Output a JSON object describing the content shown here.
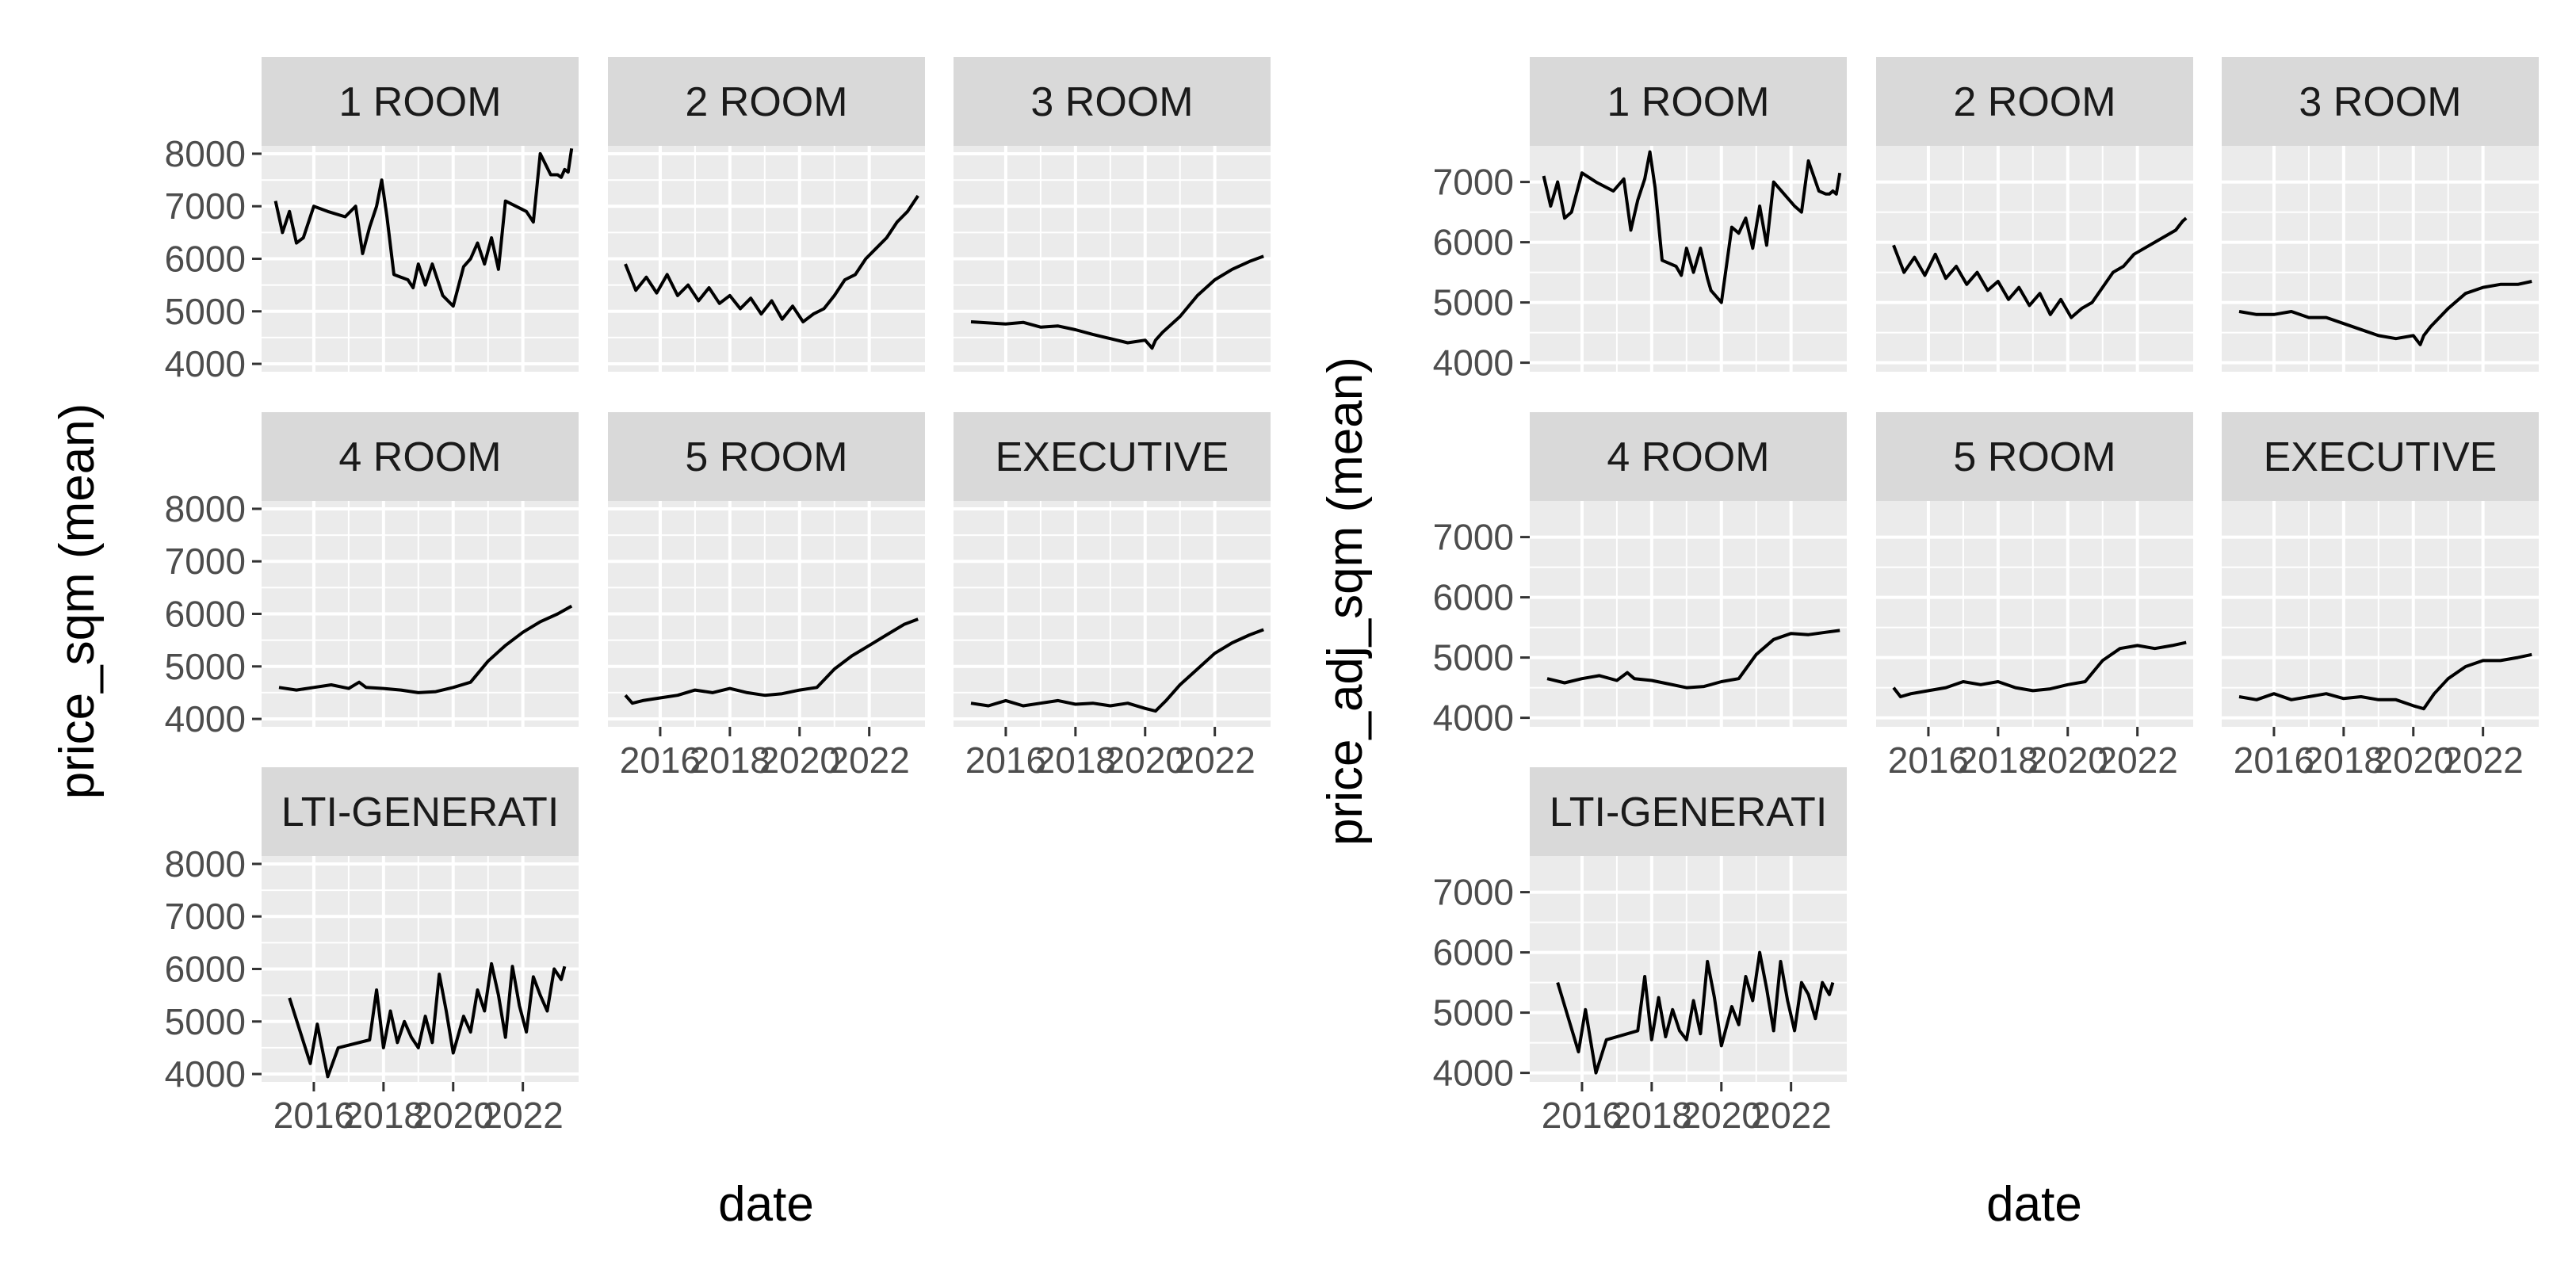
{
  "chart_data": [
    {
      "type": "line",
      "ylabel": "price_sqm (mean)",
      "xlabel": "date",
      "xlim": [
        2014.5,
        2023.6
      ],
      "ylim": [
        3850,
        8150
      ],
      "x_ticks": [
        2016,
        2018,
        2020,
        2022
      ],
      "x_tick_labels": [
        "2016",
        "2018",
        "2020",
        "2022"
      ],
      "y_ticks": [
        4000,
        5000,
        6000,
        7000,
        8000
      ],
      "y_tick_labels": [
        "4000",
        "5000",
        "6000",
        "7000",
        "8000"
      ],
      "strip_labels": [
        "1 ROOM",
        "2 ROOM",
        "3 ROOM",
        "4 ROOM",
        "5 ROOM",
        "EXECUTIVE",
        "LTI-GENERATI"
      ],
      "series": [
        {
          "panel": "1 ROOM",
          "x": [
            2014.9,
            2015.1,
            2015.3,
            2015.5,
            2015.7,
            2016.0,
            2016.4,
            2016.9,
            2017.2,
            2017.4,
            2017.6,
            2017.8,
            2017.95,
            2018.1,
            2018.3,
            2018.5,
            2018.7,
            2018.85,
            2019.0,
            2019.2,
            2019.4,
            2019.6,
            2019.7,
            2020.0,
            2020.3,
            2020.5,
            2020.7,
            2020.9,
            2021.1,
            2021.3,
            2021.5,
            2021.8,
            2022.1,
            2022.3,
            2022.5,
            2022.8,
            2023.0,
            2023.1,
            2023.2,
            2023.3,
            2023.4
          ],
          "values": [
            7100,
            6500,
            6900,
            6300,
            6400,
            7000,
            6900,
            6800,
            7000,
            6100,
            6600,
            7000,
            7500,
            6800,
            5700,
            5650,
            5600,
            5450,
            5900,
            5500,
            5900,
            5500,
            5300,
            5100,
            5850,
            6000,
            6300,
            5900,
            6400,
            5800,
            7100,
            7000,
            6900,
            6700,
            8000,
            7600,
            7600,
            7550,
            7700,
            7650,
            8100
          ]
        },
        {
          "panel": "2 ROOM",
          "x": [
            2015.0,
            2015.3,
            2015.6,
            2015.9,
            2016.2,
            2016.5,
            2016.8,
            2017.1,
            2017.4,
            2017.7,
            2018.0,
            2018.3,
            2018.6,
            2018.9,
            2019.2,
            2019.5,
            2019.8,
            2020.1,
            2020.4,
            2020.7,
            2021.0,
            2021.3,
            2021.6,
            2021.9,
            2022.2,
            2022.5,
            2022.8,
            2023.1,
            2023.3,
            2023.4
          ],
          "values": [
            5900,
            5400,
            5650,
            5350,
            5700,
            5300,
            5500,
            5200,
            5450,
            5150,
            5300,
            5050,
            5250,
            4950,
            5200,
            4850,
            5100,
            4800,
            4950,
            5050,
            5300,
            5600,
            5700,
            6000,
            6200,
            6400,
            6700,
            6900,
            7100,
            7200
          ]
        },
        {
          "panel": "3 ROOM",
          "x": [
            2015.0,
            2015.5,
            2016.0,
            2016.5,
            2017.0,
            2017.5,
            2018.0,
            2018.5,
            2019.0,
            2019.5,
            2020.0,
            2020.2,
            2020.3,
            2020.5,
            2021.0,
            2021.5,
            2022.0,
            2022.5,
            2023.0,
            2023.4
          ],
          "values": [
            4800,
            4780,
            4760,
            4790,
            4700,
            4720,
            4650,
            4560,
            4480,
            4400,
            4450,
            4300,
            4450,
            4600,
            4900,
            5300,
            5600,
            5800,
            5950,
            6050
          ]
        },
        {
          "panel": "4 ROOM",
          "x": [
            2015.0,
            2015.5,
            2016.0,
            2016.5,
            2017.0,
            2017.3,
            2017.5,
            2018.0,
            2018.5,
            2019.0,
            2019.5,
            2020.0,
            2020.5,
            2021.0,
            2021.5,
            2022.0,
            2022.5,
            2023.0,
            2023.4
          ],
          "values": [
            4600,
            4550,
            4600,
            4650,
            4580,
            4700,
            4600,
            4580,
            4550,
            4500,
            4520,
            4600,
            4700,
            5100,
            5400,
            5650,
            5850,
            6000,
            6150
          ]
        },
        {
          "panel": "5 ROOM",
          "x": [
            2015.0,
            2015.2,
            2015.5,
            2016.0,
            2016.5,
            2017.0,
            2017.5,
            2018.0,
            2018.5,
            2019.0,
            2019.5,
            2020.0,
            2020.5,
            2021.0,
            2021.5,
            2022.0,
            2022.5,
            2023.0,
            2023.4
          ],
          "values": [
            4450,
            4300,
            4350,
            4400,
            4450,
            4550,
            4500,
            4580,
            4500,
            4450,
            4480,
            4550,
            4600,
            4950,
            5200,
            5400,
            5600,
            5800,
            5900
          ]
        },
        {
          "panel": "EXECUTIVE",
          "x": [
            2015.0,
            2015.5,
            2016.0,
            2016.5,
            2017.0,
            2017.5,
            2018.0,
            2018.5,
            2019.0,
            2019.5,
            2020.0,
            2020.3,
            2020.6,
            2021.0,
            2021.5,
            2022.0,
            2022.5,
            2023.0,
            2023.4
          ],
          "values": [
            4300,
            4250,
            4350,
            4250,
            4300,
            4350,
            4280,
            4300,
            4250,
            4300,
            4200,
            4150,
            4350,
            4650,
            4950,
            5250,
            5450,
            5600,
            5700
          ]
        },
        {
          "panel": "LTI-GENERATI",
          "x": [
            2015.3,
            2015.9,
            2016.1,
            2016.4,
            2016.7,
            2017.6,
            2017.8,
            2018.0,
            2018.2,
            2018.4,
            2018.6,
            2018.8,
            2019.0,
            2019.2,
            2019.4,
            2019.6,
            2019.8,
            2020.0,
            2020.3,
            2020.5,
            2020.7,
            2020.9,
            2021.1,
            2021.3,
            2021.5,
            2021.7,
            2021.9,
            2022.1,
            2022.3,
            2022.5,
            2022.7,
            2022.9,
            2023.1,
            2023.2
          ],
          "values": [
            5450,
            4200,
            4950,
            3950,
            4500,
            4650,
            5600,
            4500,
            5200,
            4600,
            5000,
            4700,
            4500,
            5100,
            4600,
            5900,
            5200,
            4400,
            5100,
            4800,
            5600,
            5200,
            6100,
            5500,
            4700,
            6050,
            5300,
            4800,
            5850,
            5500,
            5200,
            6000,
            5800,
            6050
          ]
        }
      ]
    },
    {
      "type": "line",
      "ylabel": "price_adj_sqm (mean)",
      "xlabel": "date",
      "xlim": [
        2014.5,
        2023.6
      ],
      "ylim": [
        3850,
        7600
      ],
      "x_ticks": [
        2016,
        2018,
        2020,
        2022
      ],
      "x_tick_labels": [
        "2016",
        "2018",
        "2020",
        "2022"
      ],
      "y_ticks": [
        4000,
        5000,
        6000,
        7000
      ],
      "y_tick_labels": [
        "4000",
        "5000",
        "6000",
        "7000"
      ],
      "strip_labels": [
        "1 ROOM",
        "2 ROOM",
        "3 ROOM",
        "4 ROOM",
        "5 ROOM",
        "EXECUTIVE",
        "LTI-GENERATI"
      ],
      "series": [
        {
          "panel": "1 ROOM",
          "x": [
            2014.9,
            2015.1,
            2015.3,
            2015.5,
            2015.7,
            2016.0,
            2016.4,
            2016.9,
            2017.2,
            2017.4,
            2017.6,
            2017.8,
            2017.95,
            2018.1,
            2018.3,
            2018.5,
            2018.7,
            2018.85,
            2019.0,
            2019.2,
            2019.4,
            2019.6,
            2019.7,
            2020.0,
            2020.3,
            2020.5,
            2020.7,
            2020.9,
            2021.1,
            2021.3,
            2021.5,
            2021.8,
            2022.1,
            2022.3,
            2022.5,
            2022.8,
            2023.0,
            2023.1,
            2023.2,
            2023.3,
            2023.4
          ],
          "values": [
            7100,
            6600,
            7000,
            6400,
            6500,
            7150,
            7000,
            6850,
            7050,
            6200,
            6700,
            7050,
            7500,
            6900,
            5700,
            5650,
            5600,
            5450,
            5900,
            5500,
            5900,
            5400,
            5200,
            5000,
            6250,
            6150,
            6400,
            5900,
            6600,
            5950,
            7000,
            6800,
            6600,
            6500,
            7350,
            6850,
            6800,
            6800,
            6850,
            6800,
            7150
          ]
        },
        {
          "panel": "2 ROOM",
          "x": [
            2015.0,
            2015.3,
            2015.6,
            2015.9,
            2016.2,
            2016.5,
            2016.8,
            2017.1,
            2017.4,
            2017.7,
            2018.0,
            2018.3,
            2018.6,
            2018.9,
            2019.2,
            2019.5,
            2019.8,
            2020.1,
            2020.4,
            2020.7,
            2021.0,
            2021.3,
            2021.6,
            2021.9,
            2022.2,
            2022.5,
            2022.8,
            2023.1,
            2023.3,
            2023.4
          ],
          "values": [
            5950,
            5500,
            5750,
            5450,
            5800,
            5400,
            5600,
            5300,
            5500,
            5200,
            5350,
            5050,
            5250,
            4950,
            5150,
            4800,
            5050,
            4750,
            4900,
            5000,
            5250,
            5500,
            5600,
            5800,
            5900,
            6000,
            6100,
            6200,
            6350,
            6400
          ]
        },
        {
          "panel": "3 ROOM",
          "x": [
            2015.0,
            2015.5,
            2016.0,
            2016.5,
            2017.0,
            2017.5,
            2018.0,
            2018.5,
            2019.0,
            2019.5,
            2020.0,
            2020.2,
            2020.3,
            2020.5,
            2021.0,
            2021.5,
            2022.0,
            2022.5,
            2023.0,
            2023.4
          ],
          "values": [
            4850,
            4800,
            4800,
            4850,
            4750,
            4750,
            4650,
            4550,
            4450,
            4400,
            4450,
            4300,
            4450,
            4600,
            4900,
            5150,
            5250,
            5300,
            5300,
            5350
          ]
        },
        {
          "panel": "4 ROOM",
          "x": [
            2015.0,
            2015.5,
            2016.0,
            2016.5,
            2017.0,
            2017.3,
            2017.5,
            2018.0,
            2018.5,
            2019.0,
            2019.5,
            2020.0,
            2020.5,
            2021.0,
            2021.5,
            2022.0,
            2022.5,
            2023.0,
            2023.4
          ],
          "values": [
            4650,
            4580,
            4650,
            4700,
            4620,
            4750,
            4650,
            4620,
            4560,
            4500,
            4520,
            4600,
            4650,
            5050,
            5300,
            5400,
            5380,
            5420,
            5450
          ]
        },
        {
          "panel": "5 ROOM",
          "x": [
            2015.0,
            2015.2,
            2015.5,
            2016.0,
            2016.5,
            2017.0,
            2017.5,
            2018.0,
            2018.5,
            2019.0,
            2019.5,
            2020.0,
            2020.5,
            2021.0,
            2021.5,
            2022.0,
            2022.5,
            2023.0,
            2023.4
          ],
          "values": [
            4500,
            4350,
            4400,
            4450,
            4500,
            4600,
            4550,
            4600,
            4500,
            4450,
            4480,
            4550,
            4600,
            4950,
            5150,
            5200,
            5150,
            5200,
            5250
          ]
        },
        {
          "panel": "EXECUTIVE",
          "x": [
            2015.0,
            2015.5,
            2016.0,
            2016.5,
            2017.0,
            2017.5,
            2018.0,
            2018.5,
            2019.0,
            2019.5,
            2020.0,
            2020.3,
            2020.6,
            2021.0,
            2021.5,
            2022.0,
            2022.5,
            2023.0,
            2023.4
          ],
          "values": [
            4350,
            4300,
            4400,
            4300,
            4350,
            4400,
            4320,
            4350,
            4300,
            4300,
            4200,
            4150,
            4400,
            4650,
            4850,
            4950,
            4950,
            5000,
            5050
          ]
        },
        {
          "panel": "LTI-GENERATI",
          "x": [
            2015.3,
            2015.9,
            2016.1,
            2016.4,
            2016.7,
            2017.6,
            2017.8,
            2018.0,
            2018.2,
            2018.4,
            2018.6,
            2018.8,
            2019.0,
            2019.2,
            2019.4,
            2019.6,
            2019.8,
            2020.0,
            2020.3,
            2020.5,
            2020.7,
            2020.9,
            2021.1,
            2021.3,
            2021.5,
            2021.7,
            2021.9,
            2022.1,
            2022.3,
            2022.5,
            2022.7,
            2022.9,
            2023.1,
            2023.2
          ],
          "values": [
            5500,
            4350,
            5050,
            4000,
            4550,
            4700,
            5600,
            4550,
            5250,
            4600,
            5050,
            4700,
            4550,
            5200,
            4650,
            5850,
            5250,
            4450,
            5100,
            4800,
            5600,
            5200,
            6000,
            5400,
            4700,
            5850,
            5200,
            4700,
            5500,
            5300,
            4900,
            5500,
            5300,
            5500
          ]
        }
      ]
    }
  ]
}
